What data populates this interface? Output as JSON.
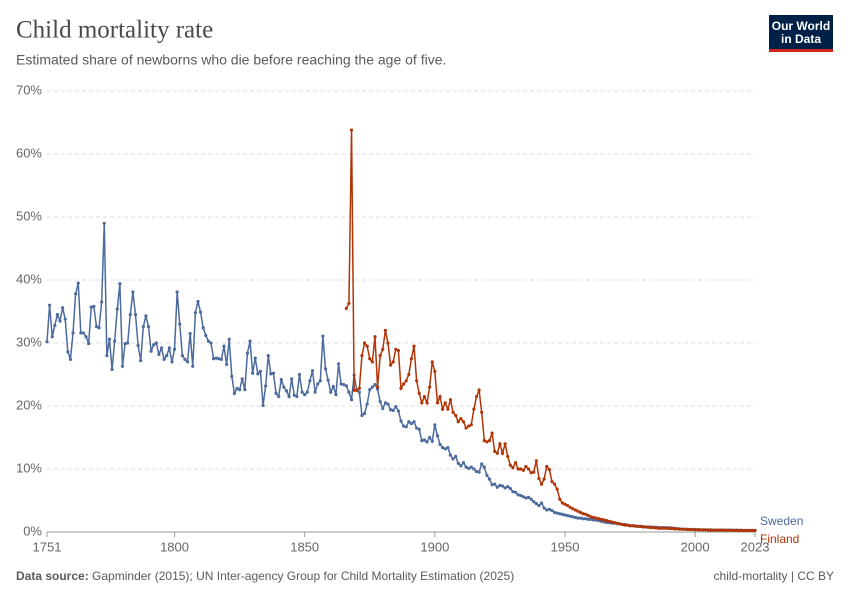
{
  "chart_data": {
    "type": "line",
    "title": "Child mortality rate",
    "subtitle": "Estimated share of newborns who die before reaching the age of five.",
    "source_label": "Data source:",
    "source": "Gapminder (2015); UN Inter-agency Group for Child Mortality Estimation (2025)",
    "license": "child-mortality | CC BY",
    "logo": [
      "Our World",
      "in Data"
    ],
    "grid": true,
    "xlim": [
      1751,
      2023
    ],
    "xticks": [
      1751,
      1800,
      1850,
      1900,
      1950,
      2000,
      2023
    ],
    "ylim": [
      0,
      70
    ],
    "yticks": [
      {
        "value": 0,
        "label": "0%"
      },
      {
        "value": 10,
        "label": "10%"
      },
      {
        "value": 20,
        "label": "20%"
      },
      {
        "value": 30,
        "label": "30%"
      },
      {
        "value": 40,
        "label": "40%"
      },
      {
        "value": 50,
        "label": "50%"
      },
      {
        "value": 60,
        "label": "60%"
      },
      {
        "value": 70,
        "label": "70%"
      }
    ],
    "x": [
      1751,
      1752,
      1753,
      1754,
      1755,
      1756,
      1757,
      1758,
      1759,
      1760,
      1761,
      1762,
      1763,
      1764,
      1765,
      1766,
      1767,
      1768,
      1769,
      1770,
      1771,
      1772,
      1773,
      1774,
      1775,
      1776,
      1777,
      1778,
      1779,
      1780,
      1781,
      1782,
      1783,
      1784,
      1785,
      1786,
      1787,
      1788,
      1789,
      1790,
      1791,
      1792,
      1793,
      1794,
      1795,
      1796,
      1797,
      1798,
      1799,
      1800,
      1801,
      1802,
      1803,
      1804,
      1805,
      1806,
      1807,
      1808,
      1809,
      1810,
      1811,
      1812,
      1813,
      1814,
      1815,
      1816,
      1817,
      1818,
      1819,
      1820,
      1821,
      1822,
      1823,
      1824,
      1825,
      1826,
      1827,
      1828,
      1829,
      1830,
      1831,
      1832,
      1833,
      1834,
      1835,
      1836,
      1837,
      1838,
      1839,
      1840,
      1841,
      1842,
      1843,
      1844,
      1845,
      1846,
      1847,
      1848,
      1849,
      1850,
      1851,
      1852,
      1853,
      1854,
      1855,
      1856,
      1857,
      1858,
      1859,
      1860,
      1861,
      1862,
      1863,
      1864,
      1865,
      1866,
      1867,
      1868,
      1869,
      1870,
      1871,
      1872,
      1873,
      1874,
      1875,
      1876,
      1877,
      1878,
      1879,
      1880,
      1881,
      1882,
      1883,
      1884,
      1885,
      1886,
      1887,
      1888,
      1889,
      1890,
      1891,
      1892,
      1893,
      1894,
      1895,
      1896,
      1897,
      1898,
      1899,
      1900,
      1901,
      1902,
      1903,
      1904,
      1905,
      1906,
      1907,
      1908,
      1909,
      1910,
      1911,
      1912,
      1913,
      1914,
      1915,
      1916,
      1917,
      1918,
      1919,
      1920,
      1921,
      1922,
      1923,
      1924,
      1925,
      1926,
      1927,
      1928,
      1929,
      1930,
      1931,
      1932,
      1933,
      1934,
      1935,
      1936,
      1937,
      1938,
      1939,
      1940,
      1941,
      1942,
      1943,
      1944,
      1945,
      1946,
      1947,
      1948,
      1949,
      1950,
      1951,
      1952,
      1953,
      1954,
      1955,
      1956,
      1957,
      1958,
      1959,
      1960,
      1961,
      1962,
      1963,
      1964,
      1965,
      1966,
      1967,
      1968,
      1969,
      1970,
      1971,
      1972,
      1973,
      1974,
      1975,
      1976,
      1977,
      1978,
      1979,
      1980,
      1981,
      1982,
      1983,
      1984,
      1985,
      1986,
      1987,
      1988,
      1989,
      1990,
      1991,
      1992,
      1993,
      1994,
      1995,
      1996,
      1997,
      1998,
      1999,
      2000,
      2001,
      2002,
      2003,
      2004,
      2005,
      2006,
      2007,
      2008,
      2009,
      2010,
      2011,
      2012,
      2013,
      2014,
      2015,
      2016,
      2017,
      2018,
      2019,
      2020,
      2021,
      2022,
      2023
    ],
    "series": [
      {
        "name": "Sweden",
        "color": "#4c6a9c",
        "values": [
          30.2,
          36.0,
          31.0,
          32.8,
          34.5,
          33.5,
          35.6,
          33.8,
          28.6,
          27.4,
          31.6,
          37.8,
          39.5,
          31.6,
          31.6,
          31.0,
          29.9,
          35.7,
          35.8,
          32.6,
          32.4,
          36.5,
          49.0,
          28.0,
          30.6,
          25.8,
          30.3,
          35.4,
          39.4,
          26.3,
          29.9,
          30.0,
          34.5,
          38.1,
          34.5,
          29.6,
          27.2,
          32.6,
          34.3,
          32.6,
          28.7,
          29.7,
          30.0,
          28.2,
          29.2,
          27.4,
          28.0,
          29.2,
          27.0,
          29.0,
          38.1,
          33.0,
          28.0,
          27.4,
          27.0,
          31.5,
          26.3,
          34.8,
          36.6,
          34.9,
          32.4,
          31.2,
          30.3,
          30.0,
          27.5,
          27.6,
          27.5,
          27.4,
          29.5,
          26.6,
          30.6,
          24.7,
          22.0,
          22.8,
          22.6,
          24.3,
          22.6,
          28.4,
          30.3,
          25.2,
          27.6,
          25.1,
          25.5,
          20.1,
          23.2,
          28.0,
          25.1,
          25.2,
          22.0,
          21.5,
          24.2,
          23.0,
          22.4,
          21.5,
          24.3,
          21.7,
          21.5,
          25.0,
          22.2,
          21.8,
          22.2,
          24.0,
          25.6,
          22.2,
          23.5,
          24.0,
          31.1,
          25.9,
          24.1,
          22.2,
          23.1,
          21.8,
          26.7,
          23.5,
          23.4,
          23.2,
          22.2,
          21.0,
          24.9,
          22.5,
          22.2,
          18.5,
          18.8,
          20.3,
          22.6,
          23.0,
          23.4,
          22.7,
          20.7,
          19.6,
          20.5,
          20.3,
          19.4,
          19.3,
          19.9,
          19.2,
          17.6,
          16.8,
          16.7,
          17.5,
          17.2,
          17.5,
          16.5,
          16.3,
          14.5,
          14.6,
          14.3,
          15.0,
          14.4,
          17.0,
          15.3,
          13.9,
          13.4,
          13.2,
          13.4,
          12.2,
          11.6,
          12.0,
          10.9,
          10.5,
          11.0,
          10.3,
          10.1,
          10.3,
          10.0,
          9.6,
          9.5,
          10.8,
          10.3,
          9.0,
          8.4,
          7.5,
          7.6,
          7.1,
          7.4,
          7.3,
          7.0,
          7.2,
          6.9,
          6.4,
          6.3,
          5.9,
          5.8,
          5.6,
          5.4,
          5.5,
          5.2,
          4.8,
          4.5,
          4.2,
          4.6,
          3.8,
          3.5,
          3.6,
          3.4,
          3.1,
          3.0,
          2.9,
          2.8,
          2.7,
          2.6,
          2.5,
          2.4,
          2.3,
          2.2,
          2.2,
          2.1,
          2.1,
          2.0,
          2.0,
          1.9,
          1.9,
          1.8,
          1.7,
          1.6,
          1.5,
          1.5,
          1.4,
          1.4,
          1.3,
          1.3,
          1.2,
          1.2,
          1.1,
          1.0,
          1.0,
          0.95,
          0.9,
          0.9,
          0.85,
          0.8,
          0.8,
          0.8,
          0.75,
          0.75,
          0.7,
          0.7,
          0.7,
          0.7,
          0.65,
          0.65,
          0.6,
          0.55,
          0.5,
          0.45,
          0.45,
          0.45,
          0.4,
          0.4,
          0.4,
          0.4,
          0.35,
          0.35,
          0.35,
          0.35,
          0.35,
          0.3,
          0.3,
          0.3,
          0.3,
          0.3,
          0.3,
          0.3,
          0.3,
          0.3,
          0.29,
          0.28,
          0.28,
          0.27,
          0.26,
          0.26,
          0.26,
          0.26
        ]
      },
      {
        "name": "Finland",
        "color": "#b13507",
        "values": [
          null,
          null,
          null,
          null,
          null,
          null,
          null,
          null,
          null,
          null,
          null,
          null,
          null,
          null,
          null,
          null,
          null,
          null,
          null,
          null,
          null,
          null,
          null,
          null,
          null,
          null,
          null,
          null,
          null,
          null,
          null,
          null,
          null,
          null,
          null,
          null,
          null,
          null,
          null,
          null,
          null,
          null,
          null,
          null,
          null,
          null,
          null,
          null,
          null,
          null,
          null,
          null,
          null,
          null,
          null,
          null,
          null,
          null,
          null,
          null,
          null,
          null,
          null,
          null,
          null,
          null,
          null,
          null,
          null,
          null,
          null,
          null,
          null,
          null,
          null,
          null,
          null,
          null,
          null,
          null,
          null,
          null,
          null,
          null,
          null,
          null,
          null,
          null,
          null,
          null,
          null,
          null,
          null,
          null,
          null,
          null,
          null,
          null,
          null,
          null,
          null,
          null,
          null,
          null,
          null,
          null,
          null,
          null,
          null,
          null,
          null,
          null,
          null,
          null,
          null,
          35.5,
          36.3,
          63.8,
          22.5,
          22.5,
          22.8,
          28.0,
          30.0,
          29.5,
          27.5,
          27.0,
          31.0,
          23.0,
          28.0,
          29.0,
          32.0,
          30.0,
          26.5,
          27.0,
          29.0,
          28.8,
          22.8,
          23.5,
          24.0,
          25.0,
          27.5,
          29.5,
          24.0,
          22.0,
          20.5,
          21.5,
          20.5,
          23.0,
          27.0,
          25.5,
          20.5,
          21.5,
          19.5,
          20.5,
          19.5,
          21.0,
          19.0,
          18.5,
          17.5,
          18.0,
          17.5,
          16.5,
          16.8,
          17.0,
          19.5,
          21.5,
          22.5,
          19.0,
          14.5,
          14.3,
          14.5,
          15.7,
          12.8,
          12.5,
          14.0,
          12.5,
          14.0,
          12.0,
          10.6,
          10.2,
          11.0,
          10.0,
          10.0,
          9.8,
          10.4,
          10.0,
          9.4,
          9.5,
          11.3,
          8.5,
          7.6,
          8.4,
          10.4,
          9.9,
          8.0,
          7.6,
          6.8,
          5.2,
          4.6,
          4.4,
          4.2,
          3.9,
          3.7,
          3.5,
          3.3,
          3.1,
          2.9,
          2.8,
          2.6,
          2.4,
          2.3,
          2.2,
          2.1,
          2.0,
          1.9,
          1.8,
          1.7,
          1.6,
          1.5,
          1.4,
          1.3,
          1.2,
          1.1,
          1.1,
          1.0,
          1.0,
          0.95,
          0.9,
          0.9,
          0.8,
          0.8,
          0.75,
          0.7,
          0.7,
          0.65,
          0.6,
          0.6,
          0.6,
          0.6,
          0.55,
          0.55,
          0.5,
          0.5,
          0.45,
          0.45,
          0.45,
          0.4,
          0.4,
          0.4,
          0.35,
          0.35,
          0.35,
          0.35,
          0.35,
          0.3,
          0.3,
          0.3,
          0.3,
          0.3,
          0.3,
          0.3,
          0.28,
          0.28,
          0.27,
          0.26,
          0.26,
          0.25,
          0.25,
          0.25,
          0.24,
          0.24,
          0.24,
          0.24
        ]
      }
    ]
  }
}
